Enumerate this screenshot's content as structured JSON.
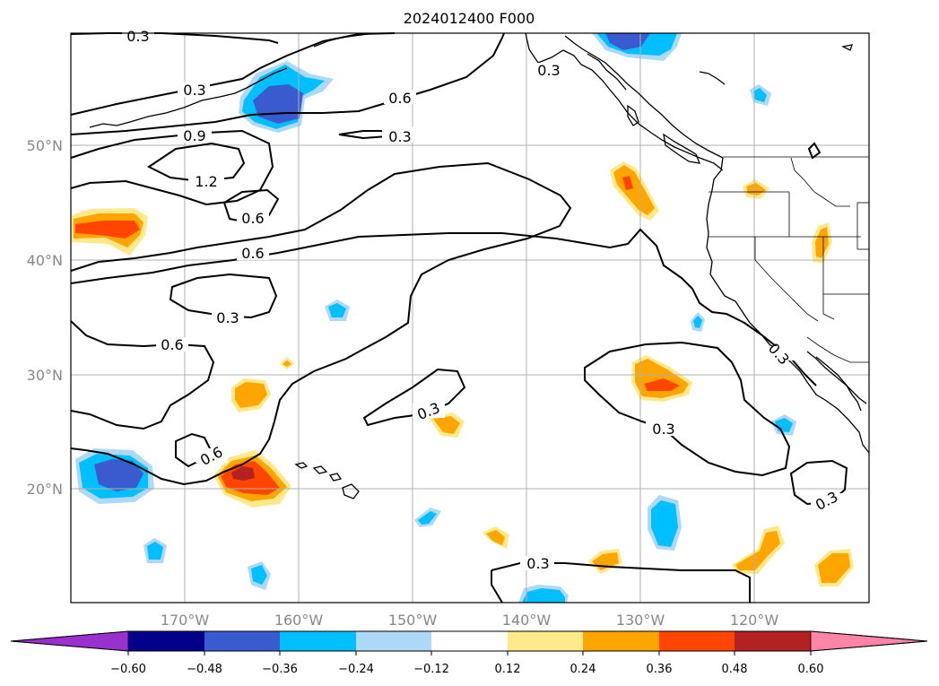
{
  "title": "2024012400 F000",
  "lat_labels": [
    "50°N",
    "40°N",
    "30°N",
    "20°N"
  ],
  "lon_labels": [
    "170°W",
    "160°W",
    "150°W",
    "140°W",
    "130°W",
    "120°W"
  ],
  "colorbar": {
    "ticks": [
      "−0.60",
      "−0.48",
      "−0.36",
      "−0.24",
      "−0.12",
      "0.12",
      "0.24",
      "0.36",
      "0.48",
      "0.60"
    ],
    "colors": [
      "#9932cc",
      "#00008b",
      "#3a5bd0",
      "#00bfff",
      "#add8f6",
      "#ffffff",
      "#ffe98a",
      "#ffa500",
      "#ff4500",
      "#b22222",
      "#ff85a8"
    ]
  },
  "contour_labels": [
    "0.3",
    "0.3",
    "0.6",
    "0.3",
    "0.9",
    "1.2",
    "0.6",
    "0.6",
    "0.3",
    "0.6",
    "0.3",
    "0.6",
    "0.3",
    "0.3",
    "0.3",
    "0.3",
    "0.3"
  ],
  "colors": {
    "land_outline": "#000000",
    "gridline": "#b0b0b0",
    "contour": "#000000"
  }
}
